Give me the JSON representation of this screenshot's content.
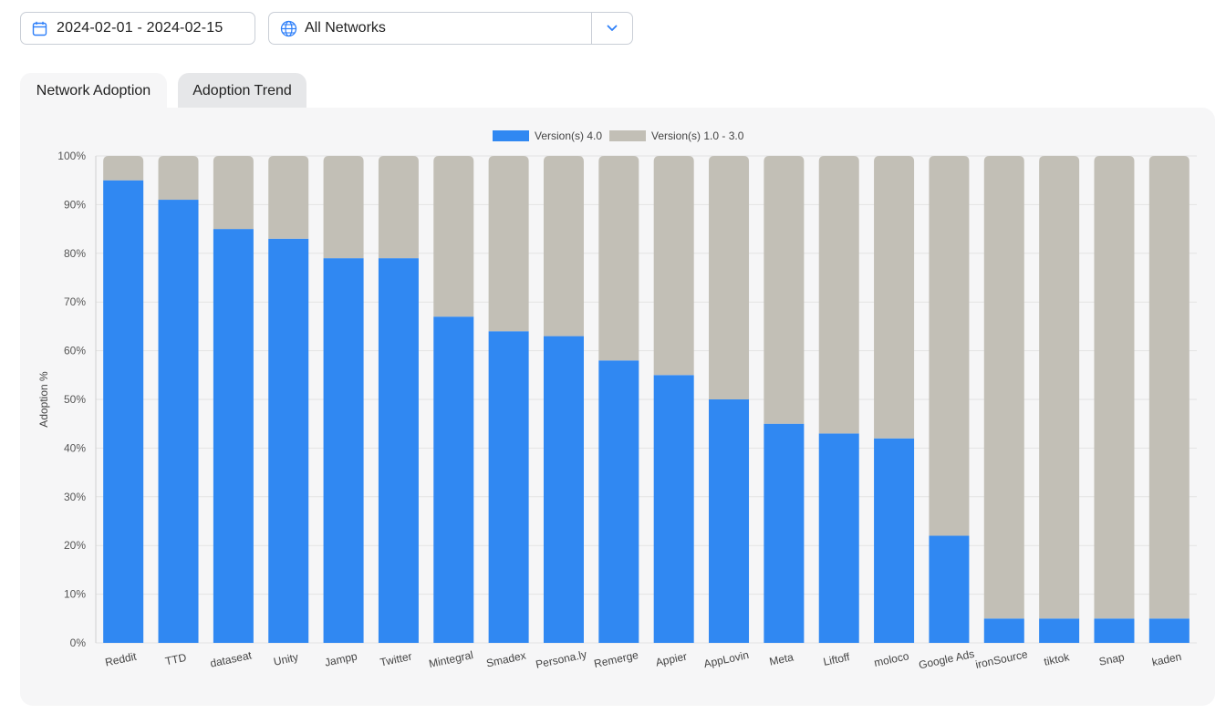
{
  "filters": {
    "date_range": "2024-02-01 - 2024-02-15",
    "network_select": "All Networks",
    "calendar_icon": "calendar-icon",
    "globe_icon": "globe-icon",
    "caret_icon": "chevron-down-icon"
  },
  "tabs": [
    {
      "label": "Network Adoption",
      "active": true
    },
    {
      "label": "Adoption Trend",
      "active": false
    }
  ],
  "colors": {
    "v4": "#3088f2",
    "v1_3": "#c2bfb6",
    "accent": "#2d7ff9"
  },
  "chart_data": {
    "type": "bar",
    "stacked": true,
    "ylabel": "Adoption %",
    "xlabel": "",
    "ylim": [
      0,
      100
    ],
    "yticks": [
      "0%",
      "10%",
      "20%",
      "30%",
      "40%",
      "50%",
      "60%",
      "70%",
      "80%",
      "90%",
      "100%"
    ],
    "grid": true,
    "legend_position": "top",
    "categories": [
      "Reddit",
      "TTD",
      "dataseat",
      "Unity",
      "Jampp",
      "Twitter",
      "Mintegral",
      "Smadex",
      "Persona.ly",
      "Remerge",
      "Appier",
      "AppLovin",
      "Meta",
      "Liftoff",
      "moloco",
      "Google Ads",
      "ironSource",
      "tiktok",
      "Snap",
      "kaden"
    ],
    "series": [
      {
        "name": "Version(s) 4.0",
        "values": [
          95,
          91,
          85,
          83,
          79,
          79,
          67,
          64,
          63,
          58,
          55,
          50,
          45,
          43,
          42,
          22,
          5,
          5,
          5,
          5
        ]
      },
      {
        "name": "Version(s) 1.0 - 3.0",
        "values": [
          5,
          9,
          15,
          17,
          21,
          21,
          33,
          36,
          37,
          42,
          45,
          50,
          55,
          57,
          58,
          78,
          95,
          95,
          95,
          95
        ]
      }
    ]
  }
}
